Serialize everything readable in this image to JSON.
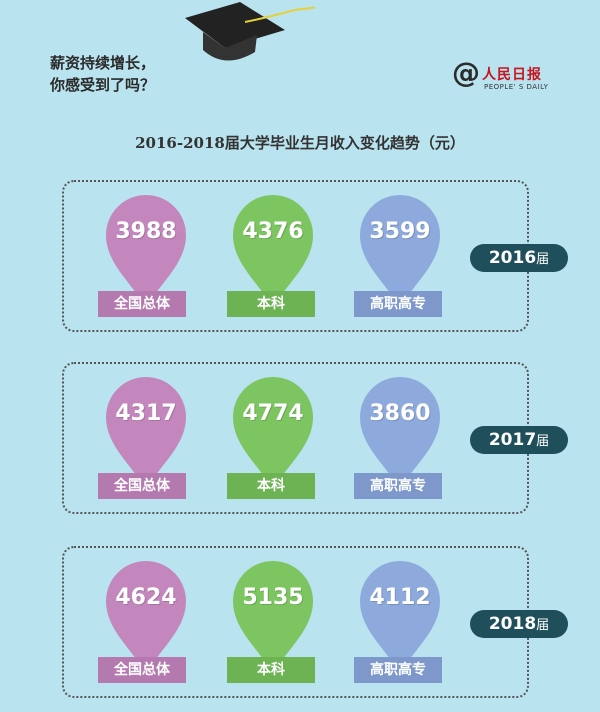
{
  "headline": {
    "line1": "薪资持续增长，",
    "line2": "你感受到了吗？"
  },
  "logo": {
    "mark": "@",
    "name": "人民日报",
    "english": "PEOPLE' S DAILY"
  },
  "chart_data": {
    "type": "table",
    "title": "2016-2018届大学毕业生月收入变化趋势（元）",
    "categories": [
      "全国总体",
      "本科",
      "高职高专"
    ],
    "series": [
      {
        "name": "2016届",
        "year": "2016",
        "suffix": "届",
        "values": [
          3988,
          4376,
          3599
        ]
      },
      {
        "name": "2017届",
        "year": "2017",
        "suffix": "届",
        "values": [
          4317,
          4774,
          3860
        ]
      },
      {
        "name": "2018届",
        "year": "2018",
        "suffix": "届",
        "values": [
          4624,
          5135,
          4112
        ]
      }
    ],
    "colors": [
      "#c387bd",
      "#7cc561",
      "#8ea9dc"
    ],
    "label_colors": [
      "#b47ab0",
      "#6db353",
      "#7e98cc"
    ]
  }
}
